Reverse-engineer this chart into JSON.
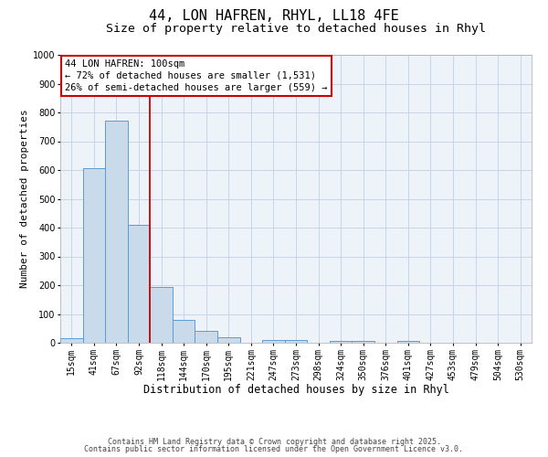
{
  "title": "44, LON HAFREN, RHYL, LL18 4FE",
  "subtitle": "Size of property relative to detached houses in Rhyl",
  "xlabel": "Distribution of detached houses by size in Rhyl",
  "ylabel": "Number of detached properties",
  "bar_labels": [
    "15sqm",
    "41sqm",
    "67sqm",
    "92sqm",
    "118sqm",
    "144sqm",
    "170sqm",
    "195sqm",
    "221sqm",
    "247sqm",
    "273sqm",
    "298sqm",
    "324sqm",
    "350sqm",
    "376sqm",
    "401sqm",
    "427sqm",
    "453sqm",
    "479sqm",
    "504sqm",
    "530sqm"
  ],
  "bar_values": [
    15,
    605,
    770,
    410,
    193,
    78,
    40,
    18,
    0,
    10,
    10,
    0,
    5,
    5,
    0,
    5,
    0,
    0,
    0,
    0,
    0
  ],
  "bar_color": "#c9daea",
  "bar_edge_color": "#5b9bd5",
  "vline_color": "#cc0000",
  "annotation_line1": "44 LON HAFREN: 100sqm",
  "annotation_line2": "← 72% of detached houses are smaller (1,531)",
  "annotation_line3": "26% of semi-detached houses are larger (559) →",
  "ylim": [
    0,
    1000
  ],
  "yticks": [
    0,
    100,
    200,
    300,
    400,
    500,
    600,
    700,
    800,
    900,
    1000
  ],
  "grid_color": "#c5d5e8",
  "bg_color": "#eef3f9",
  "footer1": "Contains HM Land Registry data © Crown copyright and database right 2025.",
  "footer2": "Contains public sector information licensed under the Open Government Licence v3.0.",
  "title_fontsize": 11,
  "subtitle_fontsize": 9.5,
  "xlabel_fontsize": 8.5,
  "ylabel_fontsize": 8,
  "tick_fontsize": 7,
  "annotation_fontsize": 7.5,
  "footer_fontsize": 6
}
